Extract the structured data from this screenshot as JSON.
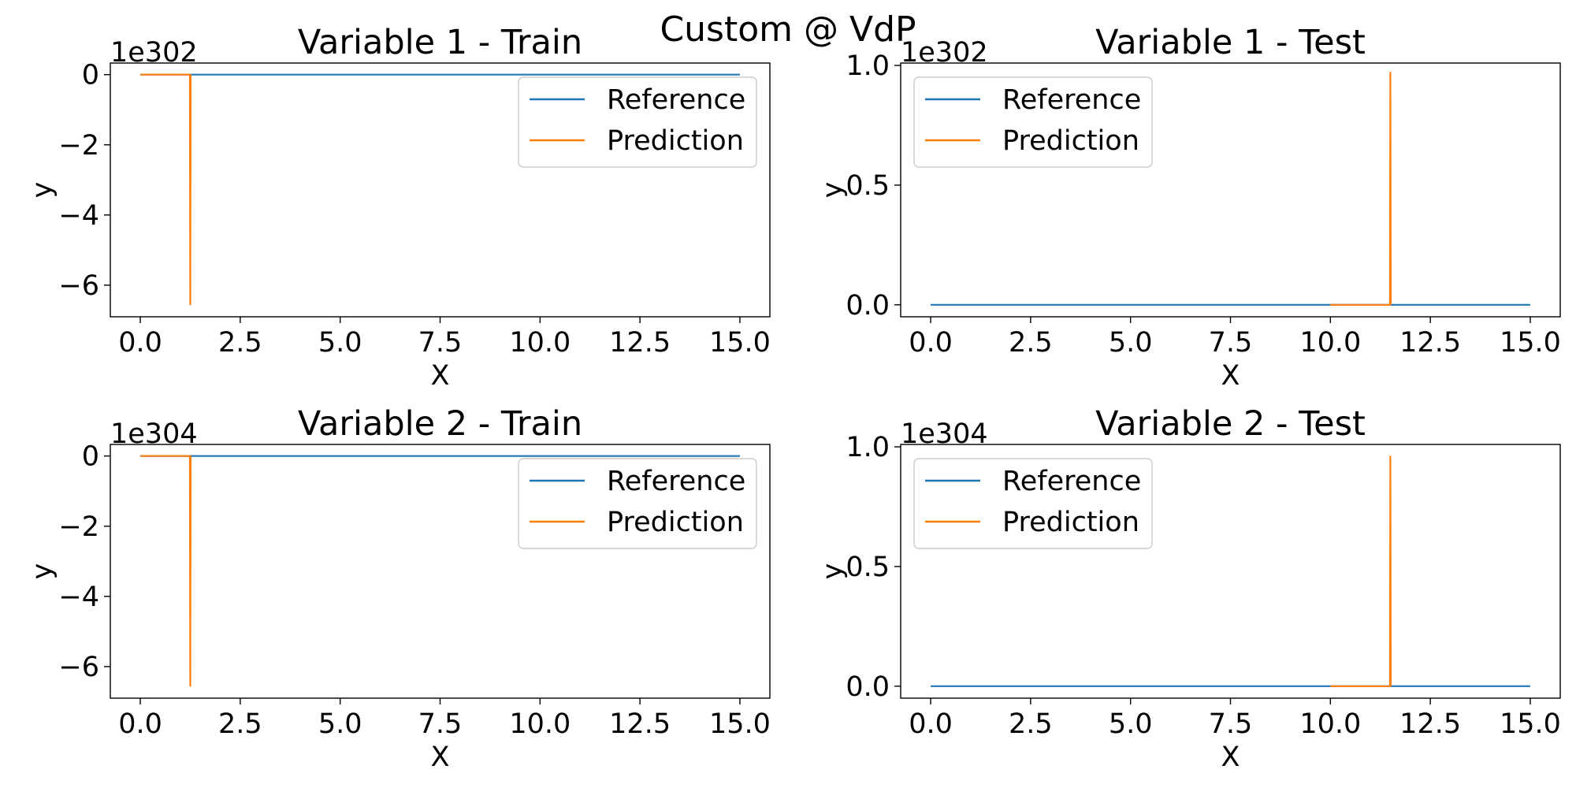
{
  "figure": {
    "suptitle": "Custom @ VdP"
  },
  "colors": {
    "reference": "#1f77b4",
    "prediction": "#ff7f0e",
    "axes": "#000000",
    "legend_border": "#cccccc",
    "background": "#ffffff"
  },
  "chart_data": [
    {
      "type": "line",
      "title": "Variable 1 - Train",
      "xlabel": "X",
      "ylabel": "y",
      "offset_label": "1e302",
      "xlim": [
        -0.75,
        15.75
      ],
      "ylim": [
        -6.9,
        0.33
      ],
      "x_ticks": [
        0.0,
        2.5,
        5.0,
        7.5,
        10.0,
        12.5,
        15.0
      ],
      "x_tick_labels": [
        "0.0",
        "2.5",
        "5.0",
        "7.5",
        "10.0",
        "12.5",
        "15.0"
      ],
      "y_ticks": [
        0,
        -2,
        -4,
        -6
      ],
      "y_tick_labels": [
        "0",
        "−2",
        "−4",
        "−6"
      ],
      "legend": "top-right",
      "grid": false,
      "series": [
        {
          "name": "Reference",
          "x": [
            0.0,
            15.0
          ],
          "y": [
            0.0,
            0.0
          ]
        },
        {
          "name": "Prediction",
          "x": [
            0.0,
            1.24,
            1.25,
            1.26
          ],
          "y": [
            0.0,
            0.0,
            -6.55,
            0.0
          ]
        }
      ]
    },
    {
      "type": "line",
      "title": "Variable 1 - Test",
      "xlabel": "X",
      "ylabel": "y",
      "offset_label": "1e302",
      "xlim": [
        -0.75,
        15.75
      ],
      "ylim": [
        -0.05,
        1.01
      ],
      "x_ticks": [
        0.0,
        2.5,
        5.0,
        7.5,
        10.0,
        12.5,
        15.0
      ],
      "x_tick_labels": [
        "0.0",
        "2.5",
        "5.0",
        "7.5",
        "10.0",
        "12.5",
        "15.0"
      ],
      "y_ticks": [
        0.0,
        0.5,
        1.0
      ],
      "y_tick_labels": [
        "0.0",
        "0.5",
        "1.0"
      ],
      "legend": "top-left",
      "grid": false,
      "series": [
        {
          "name": "Reference",
          "x": [
            0.0,
            15.0
          ],
          "y": [
            0.0,
            0.0
          ]
        },
        {
          "name": "Prediction",
          "x": [
            10.0,
            11.49,
            11.5,
            11.51
          ],
          "y": [
            0.0,
            0.0,
            0.97,
            0.0
          ]
        }
      ]
    },
    {
      "type": "line",
      "title": "Variable 2 - Train",
      "xlabel": "X",
      "ylabel": "y",
      "offset_label": "1e304",
      "xlim": [
        -0.75,
        15.75
      ],
      "ylim": [
        -6.9,
        0.33
      ],
      "x_ticks": [
        0.0,
        2.5,
        5.0,
        7.5,
        10.0,
        12.5,
        15.0
      ],
      "x_tick_labels": [
        "0.0",
        "2.5",
        "5.0",
        "7.5",
        "10.0",
        "12.5",
        "15.0"
      ],
      "y_ticks": [
        0,
        -2,
        -4,
        -6
      ],
      "y_tick_labels": [
        "0",
        "−2",
        "−4",
        "−6"
      ],
      "legend": "top-right",
      "grid": false,
      "series": [
        {
          "name": "Reference",
          "x": [
            0.0,
            15.0
          ],
          "y": [
            0.0,
            0.0
          ]
        },
        {
          "name": "Prediction",
          "x": [
            0.0,
            1.24,
            1.25,
            1.26
          ],
          "y": [
            0.0,
            0.0,
            -6.55,
            0.0
          ]
        }
      ]
    },
    {
      "type": "line",
      "title": "Variable 2 - Test",
      "xlabel": "X",
      "ylabel": "y",
      "offset_label": "1e304",
      "xlim": [
        -0.75,
        15.75
      ],
      "ylim": [
        -0.05,
        1.01
      ],
      "x_ticks": [
        0.0,
        2.5,
        5.0,
        7.5,
        10.0,
        12.5,
        15.0
      ],
      "x_tick_labels": [
        "0.0",
        "2.5",
        "5.0",
        "7.5",
        "10.0",
        "12.5",
        "15.0"
      ],
      "y_ticks": [
        0.0,
        0.5,
        1.0
      ],
      "y_tick_labels": [
        "0.0",
        "0.5",
        "1.0"
      ],
      "legend": "top-left",
      "grid": false,
      "series": [
        {
          "name": "Reference",
          "x": [
            0.0,
            15.0
          ],
          "y": [
            0.0,
            0.0
          ]
        },
        {
          "name": "Prediction",
          "x": [
            10.0,
            11.49,
            11.5,
            11.51
          ],
          "y": [
            0.0,
            0.0,
            0.96,
            0.0
          ]
        }
      ]
    }
  ]
}
